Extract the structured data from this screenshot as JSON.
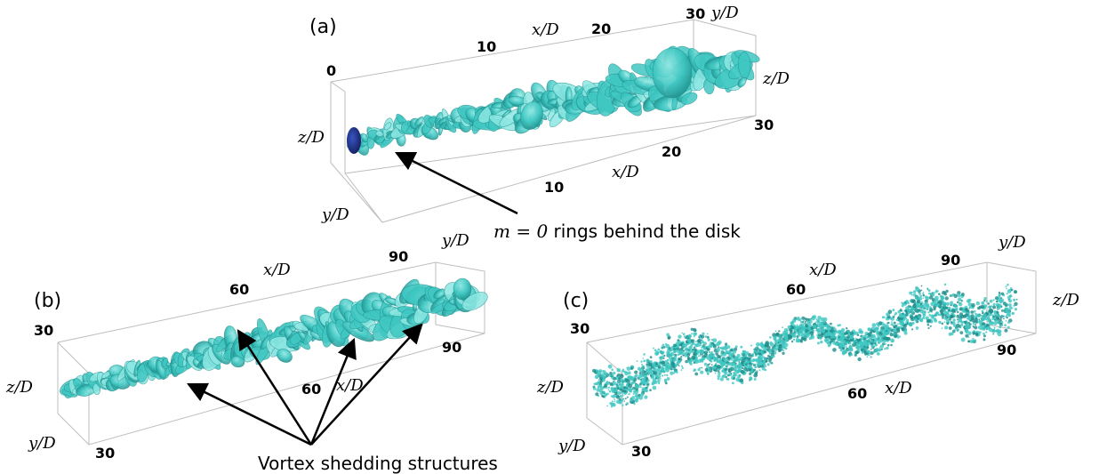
{
  "figure": {
    "colors": {
      "vortex_fill": "#3fc7c2",
      "vortex_dark": "#1f8d8b",
      "vortex_light": "#8ce6e2",
      "disk": "#1a2a7a",
      "box_edge": "#bdbdbd",
      "arrow": "#000000"
    },
    "panels": [
      {
        "id": "a",
        "label": "(a)",
        "x_ticks_top": [
          "0",
          "10",
          "20",
          "30"
        ],
        "x_ticks_bottom": [
          "10",
          "20"
        ],
        "z_tick": "30",
        "axis_x_top": "x/D",
        "axis_x_bottom": "x/D",
        "axis_y_top": "y/D",
        "axis_y_bottom": "y/D",
        "axis_z_left": "z/D",
        "axis_z_right": "z/D",
        "annotation_math": "m = 0",
        "annotation_text": "rings behind the disk"
      },
      {
        "id": "b",
        "label": "(b)",
        "x_ticks_top": [
          "60",
          "90"
        ],
        "x_ticks_bottom": [
          "60",
          "90"
        ],
        "y_tick_left": "30",
        "y_tick_bottom": "30",
        "axis_x_top": "x/D",
        "axis_x_bottom": "x/D",
        "axis_y_top": "y/D",
        "axis_y_bottom": "y/D",
        "axis_z_left": "z/D",
        "annotation_text": "Vortex shedding structures"
      },
      {
        "id": "c",
        "label": "(c)",
        "x_ticks_top": [
          "60",
          "90"
        ],
        "x_ticks_bottom": [
          "60",
          "90"
        ],
        "y_tick_left": "30",
        "y_tick_bottom": "30",
        "axis_x_top": "x/D",
        "axis_x_bottom": "x/D",
        "axis_y_top": "y/D",
        "axis_y_bottom": "y/D",
        "axis_z_left": "z/D",
        "axis_z_right": "z/D"
      }
    ]
  }
}
